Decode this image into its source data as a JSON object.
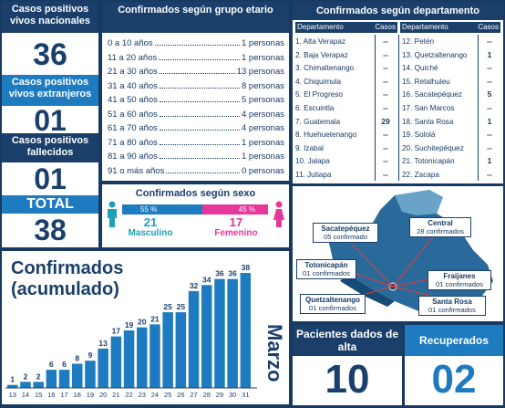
{
  "colors": {
    "navy": "#1b3f6b",
    "blue": "#1e7bc0",
    "pink": "#e6379b",
    "teal": "#1d9fb8",
    "map": "#2a6a9a"
  },
  "left": {
    "nacionales_label": "Casos positivos vivos nacionales",
    "nacionales_value": "36",
    "extranjeros_label": "Casos positivos vivos extranjeros",
    "extranjeros_value": "01",
    "fallecidos_label": "Casos positivos fallecidos",
    "fallecidos_value": "01",
    "total_label": "TOTAL",
    "total_value": "38"
  },
  "age": {
    "title": "Confirmados según grupo etario",
    "rows": [
      {
        "label": "0 a 10 años",
        "value": "1 personas"
      },
      {
        "label": "11 a 20 años",
        "value": "1 personas"
      },
      {
        "label": "21 a 30 años",
        "value": "13 personas"
      },
      {
        "label": "31 a 40 años",
        "value": "8 personas"
      },
      {
        "label": "41 a 50 años",
        "value": "5 personas"
      },
      {
        "label": "51 a 60 años",
        "value": "4 personas"
      },
      {
        "label": "61 a 70 años",
        "value": "4 personas"
      },
      {
        "label": "71 a 80 años",
        "value": "1 personas"
      },
      {
        "label": "81 a 90 años",
        "value": "1 personas"
      },
      {
        "label": "91 o más años",
        "value": "0 personas"
      }
    ]
  },
  "sex": {
    "title": "Confirmados según sexo",
    "male_pct": "55 %",
    "female_pct": "45 %",
    "male_share": 55,
    "male_count": "21",
    "male_label": "Masculino",
    "female_count": "17",
    "female_label": "Femenino"
  },
  "dept": {
    "title": "Confirmados según departamento",
    "header_dep": "Departamento",
    "header_cases": "Casos",
    "left": [
      {
        "name": "1. Alta Verapaz",
        "cases": "--"
      },
      {
        "name": "2. Baja Verapaz",
        "cases": "--"
      },
      {
        "name": "3. Chimaltenango",
        "cases": "--"
      },
      {
        "name": "4. Chiquimula",
        "cases": "--"
      },
      {
        "name": "5. El Progreso",
        "cases": "--"
      },
      {
        "name": "6. Escuintla",
        "cases": "--"
      },
      {
        "name": "7. Guatemala",
        "cases": "29"
      },
      {
        "name": "8. Huehuetenango",
        "cases": "--"
      },
      {
        "name": "9. Izabal",
        "cases": "--"
      },
      {
        "name": "10. Jalapa",
        "cases": "--"
      },
      {
        "name": "11. Jutiapa",
        "cases": "--"
      }
    ],
    "right": [
      {
        "name": "12. Petén",
        "cases": "--"
      },
      {
        "name": "13. Quetzaltenango",
        "cases": "1"
      },
      {
        "name": "14. Quiché",
        "cases": "--"
      },
      {
        "name": "15. Retalhuleu",
        "cases": "--"
      },
      {
        "name": "16. Sacatepéquez",
        "cases": "5"
      },
      {
        "name": "17. San Marcos",
        "cases": "--"
      },
      {
        "name": "18. Santa Rosa",
        "cases": "1"
      },
      {
        "name": "19. Sololá",
        "cases": "--"
      },
      {
        "name": "20. Suchitepéquez",
        "cases": "--"
      },
      {
        "name": "21. Totonicapán",
        "cases": "1"
      },
      {
        "name": "22. Zacapa",
        "cases": "--"
      }
    ]
  },
  "map": {
    "labels": [
      {
        "name": "Sacatepéquez",
        "detail": "05 confirmado"
      },
      {
        "name": "Central",
        "detail": "28 confirmados"
      },
      {
        "name": "Totonicapán",
        "detail": "01 confirmados"
      },
      {
        "name": "Fraijanes",
        "detail": "01 confirmados"
      },
      {
        "name": "Quetzaltenango",
        "detail": "01 confirmados"
      },
      {
        "name": "Santa Rosa",
        "detail": "01 confirmados"
      }
    ]
  },
  "chart_data": {
    "type": "bar",
    "title": "Confirmados (acumulado)",
    "title_line1": "Confirmados",
    "title_line2": "(acumulado)",
    "month_label": "Marzo",
    "categories": [
      "13",
      "14",
      "15",
      "16",
      "17",
      "18",
      "19",
      "20",
      "21",
      "22",
      "23",
      "24",
      "25",
      "26",
      "27",
      "28",
      "29",
      "30",
      "31"
    ],
    "values": [
      1,
      2,
      2,
      6,
      6,
      8,
      9,
      13,
      17,
      19,
      20,
      21,
      25,
      25,
      32,
      34,
      36,
      36,
      38
    ],
    "ylim": [
      0,
      38
    ],
    "grid": false,
    "legend": "none"
  },
  "bottom": {
    "alta_label": "Pacientes dados de alta",
    "alta_value": "10",
    "rec_label": "Recuperados",
    "rec_value": "02"
  }
}
